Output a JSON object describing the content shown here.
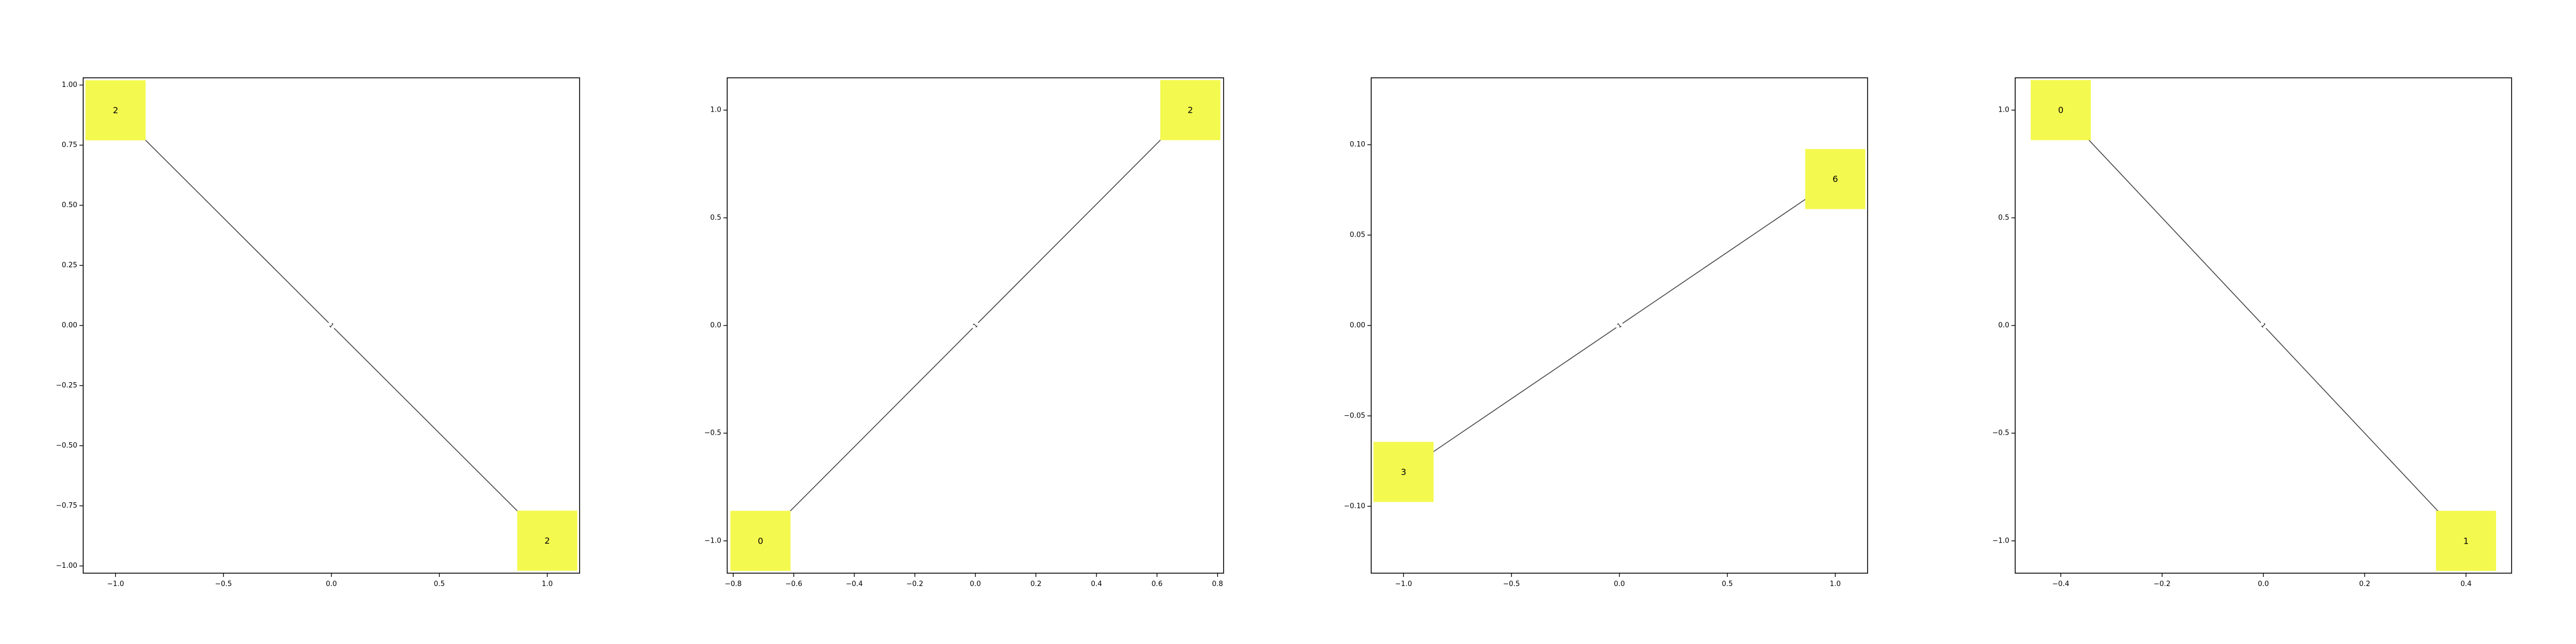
{
  "chart_data": [
    {
      "type": "network",
      "xlim": [
        -1.15,
        1.15
      ],
      "ylim": [
        -1.03,
        1.03
      ],
      "xticks": [
        -1.0,
        -0.5,
        0.0,
        0.5,
        1.0
      ],
      "xtick_labels": [
        "−1.0",
        "−0.5",
        "0.0",
        "0.5",
        "1.0"
      ],
      "yticks": [
        -1.0,
        -0.75,
        -0.5,
        -0.25,
        0.0,
        0.25,
        0.5,
        0.75,
        1.0
      ],
      "ytick_labels": [
        "−1.00",
        "−0.75",
        "−0.50",
        "−0.25",
        "0.00",
        "0.25",
        "0.50",
        "0.75",
        "1.00"
      ],
      "nodes": [
        {
          "label": "2",
          "x": -1.0,
          "y": 0.895
        },
        {
          "label": "2",
          "x": 1.0,
          "y": -0.895
        }
      ],
      "edges": [
        {
          "source": 0,
          "target": 1,
          "label": "1"
        }
      ],
      "node_color": "#f4f94f",
      "edge_color": "#444444"
    },
    {
      "type": "network",
      "xlim": [
        -0.82,
        0.82
      ],
      "ylim": [
        -1.15,
        1.15
      ],
      "xticks": [
        -0.8,
        -0.6,
        -0.4,
        -0.2,
        0.0,
        0.2,
        0.4,
        0.6,
        0.8
      ],
      "xtick_labels": [
        "−0.8",
        "−0.6",
        "−0.4",
        "−0.2",
        "0.0",
        "0.2",
        "0.4",
        "0.6",
        "0.8"
      ],
      "yticks": [
        -1.0,
        -0.5,
        0.0,
        0.5,
        1.0
      ],
      "ytick_labels": [
        "−1.0",
        "−0.5",
        "0.0",
        "0.5",
        "1.0"
      ],
      "nodes": [
        {
          "label": "0",
          "x": -0.71,
          "y": -1.0
        },
        {
          "label": "2",
          "x": 0.71,
          "y": 1.0
        }
      ],
      "edges": [
        {
          "source": 0,
          "target": 1,
          "label": "1"
        }
      ],
      "node_color": "#f4f94f",
      "edge_color": "#444444"
    },
    {
      "type": "network",
      "xlim": [
        -1.15,
        1.15
      ],
      "ylim": [
        -0.137,
        0.137
      ],
      "xticks": [
        -1.0,
        -0.5,
        0.0,
        0.5,
        1.0
      ],
      "xtick_labels": [
        "−1.0",
        "−0.5",
        "0.0",
        "0.5",
        "1.0"
      ],
      "yticks": [
        -0.1,
        -0.05,
        0.0,
        0.05,
        0.1
      ],
      "ytick_labels": [
        "−0.10",
        "−0.05",
        "0.00",
        "0.05",
        "0.10"
      ],
      "nodes": [
        {
          "label": "3",
          "x": -1.0,
          "y": -0.081
        },
        {
          "label": "6",
          "x": 1.0,
          "y": 0.081
        }
      ],
      "edges": [
        {
          "source": 0,
          "target": 1,
          "label": "1"
        }
      ],
      "node_color": "#f4f94f",
      "edge_color": "#444444"
    },
    {
      "type": "network",
      "xlim": [
        -0.49,
        0.49
      ],
      "ylim": [
        -1.15,
        1.15
      ],
      "xticks": [
        -0.4,
        -0.2,
        0.0,
        0.2,
        0.4
      ],
      "xtick_labels": [
        "−0.4",
        "−0.2",
        "0.0",
        "0.2",
        "0.4"
      ],
      "yticks": [
        -1.0,
        -0.5,
        0.0,
        0.5,
        1.0
      ],
      "ytick_labels": [
        "−1.0",
        "−0.5",
        "0.0",
        "0.5",
        "1.0"
      ],
      "nodes": [
        {
          "label": "0",
          "x": -0.4,
          "y": 1.0
        },
        {
          "label": "1",
          "x": 0.4,
          "y": -1.0
        }
      ],
      "edges": [
        {
          "source": 0,
          "target": 1,
          "label": "1"
        }
      ],
      "node_color": "#f4f94f",
      "edge_color": "#444444"
    }
  ]
}
